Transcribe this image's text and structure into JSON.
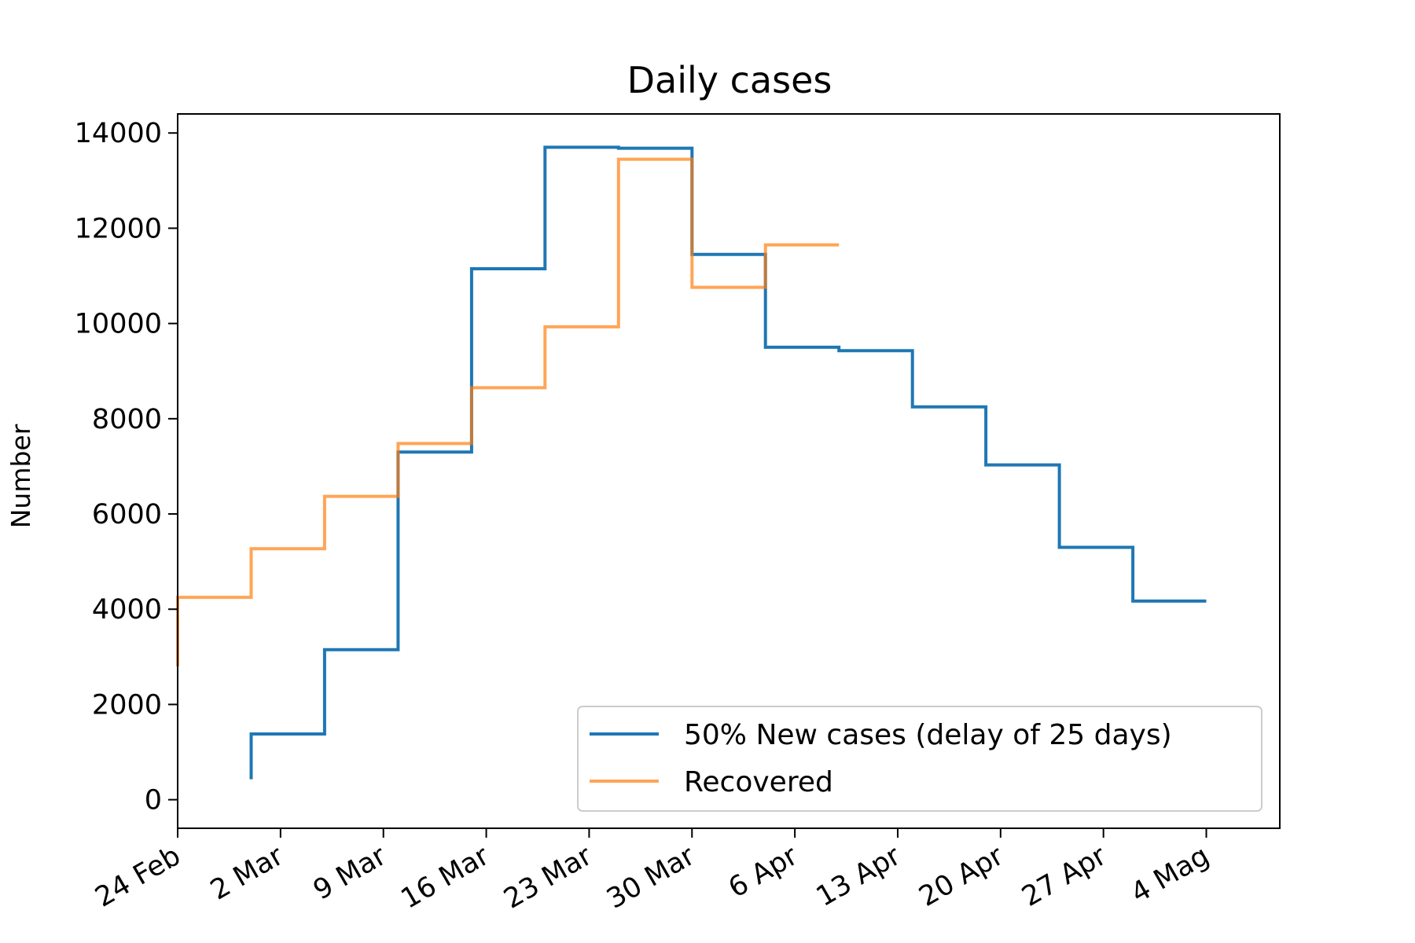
{
  "chart_data": {
    "type": "line",
    "step": "post",
    "title": "Daily cases",
    "xlabel": "",
    "ylabel": "Number",
    "x_ticks": [
      "24 Feb",
      "2 Mar",
      "9 Mar",
      "16 Mar",
      "23 Mar",
      "30 Mar",
      "6 Apr",
      "13 Apr",
      "20 Apr",
      "27 Apr",
      "4 Mag"
    ],
    "x_tick_dates": [
      "2020-02-24",
      "2020-03-02",
      "2020-03-09",
      "2020-03-16",
      "2020-03-23",
      "2020-03-30",
      "2020-04-06",
      "2020-04-13",
      "2020-04-20",
      "2020-04-27",
      "2020-05-04"
    ],
    "xlim": [
      "2020-02-24",
      "2020-05-09"
    ],
    "ylim": [
      -600,
      14400
    ],
    "y_ticks": [
      0,
      2000,
      4000,
      6000,
      8000,
      10000,
      12000,
      14000
    ],
    "grid": false,
    "legend_position": "lower right",
    "series": [
      {
        "name": "50% New cases (delay of 25 days)",
        "color": "#1f77b4",
        "opacity": 1,
        "x": [
          "2020-02-29",
          "2020-02-29",
          "2020-03-05",
          "2020-03-10",
          "2020-03-15",
          "2020-03-20",
          "2020-03-25",
          "2020-03-30",
          "2020-04-04",
          "2020-04-09",
          "2020-04-14",
          "2020-04-19",
          "2020-04-24",
          "2020-04-29",
          "2020-05-04"
        ],
        "y": [
          430,
          1380,
          3150,
          7300,
          11150,
          13700,
          13680,
          11450,
          9500,
          9430,
          8250,
          7030,
          5300,
          4170,
          4170
        ]
      },
      {
        "name": "Recovered",
        "color": "#ff7f0e",
        "opacity": 0.7,
        "x": [
          "2020-02-24",
          "2020-02-24",
          "2020-02-29",
          "2020-03-05",
          "2020-03-10",
          "2020-03-15",
          "2020-03-20",
          "2020-03-25",
          "2020-03-30",
          "2020-04-04",
          "2020-04-09"
        ],
        "y": [
          2800,
          4250,
          5270,
          6370,
          7480,
          8650,
          9930,
          13450,
          10760,
          11650,
          11650
        ]
      }
    ]
  }
}
